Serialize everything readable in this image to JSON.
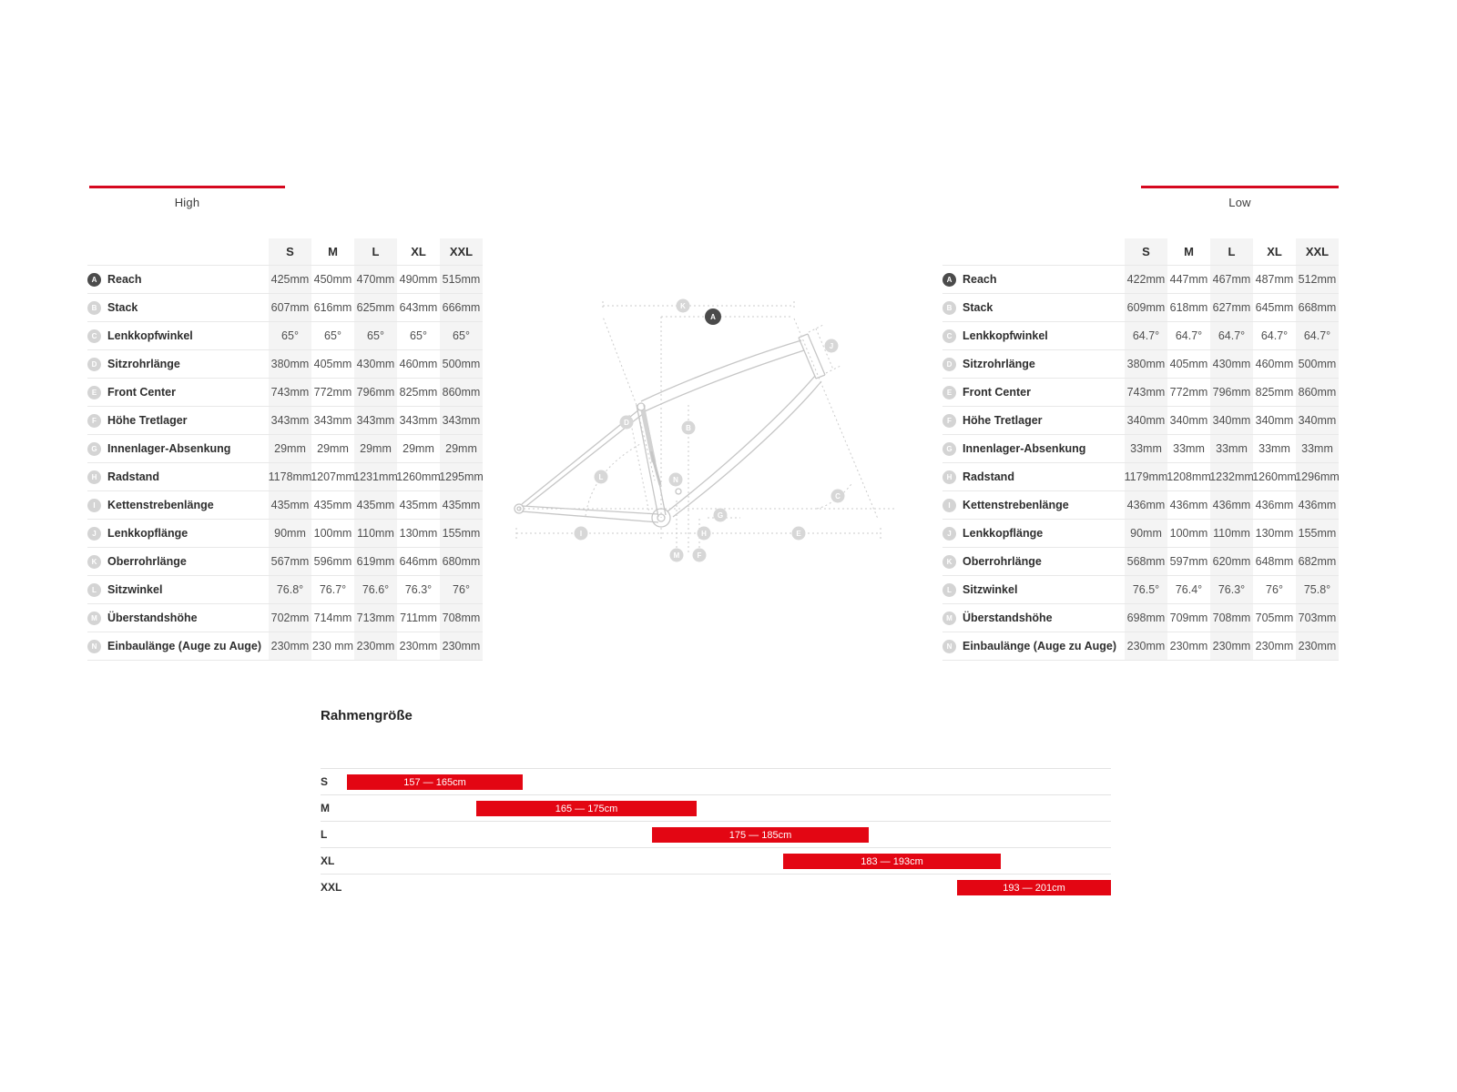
{
  "accent_color": "#e30613",
  "tabs": {
    "high_label": "High",
    "low_label": "Low"
  },
  "tables": [
    {
      "id": "high",
      "setting_label": "High",
      "columns": [
        "S",
        "M",
        "L",
        "XL",
        "XXL"
      ],
      "rows": [
        {
          "letter": "A",
          "label": "Reach",
          "highlight": true,
          "values": [
            "425mm",
            "450mm",
            "470mm",
            "490mm",
            "515mm"
          ]
        },
        {
          "letter": "B",
          "label": "Stack",
          "values": [
            "607mm",
            "616mm",
            "625mm",
            "643mm",
            "666mm"
          ]
        },
        {
          "letter": "C",
          "label": "Lenkkopfwinkel",
          "values": [
            "65°",
            "65°",
            "65°",
            "65°",
            "65°"
          ]
        },
        {
          "letter": "D",
          "label": "Sitzrohrlänge",
          "values": [
            "380mm",
            "405mm",
            "430mm",
            "460mm",
            "500mm"
          ]
        },
        {
          "letter": "E",
          "label": "Front Center",
          "values": [
            "743mm",
            "772mm",
            "796mm",
            "825mm",
            "860mm"
          ]
        },
        {
          "letter": "F",
          "label": "Höhe Tretlager",
          "values": [
            "343mm",
            "343mm",
            "343mm",
            "343mm",
            "343mm"
          ]
        },
        {
          "letter": "G",
          "label": "Innenlager-Absenkung",
          "values": [
            "29mm",
            "29mm",
            "29mm",
            "29mm",
            "29mm"
          ]
        },
        {
          "letter": "H",
          "label": "Radstand",
          "values": [
            "1178mm",
            "1207mm",
            "1231mm",
            "1260mm",
            "1295mm"
          ]
        },
        {
          "letter": "I",
          "label": "Kettenstrebenlänge",
          "values": [
            "435mm",
            "435mm",
            "435mm",
            "435mm",
            "435mm"
          ]
        },
        {
          "letter": "J",
          "label": "Lenkkopflänge",
          "values": [
            "90mm",
            "100mm",
            "110mm",
            "130mm",
            "155mm"
          ]
        },
        {
          "letter": "K",
          "label": "Oberrohrlänge",
          "values": [
            "567mm",
            "596mm",
            "619mm",
            "646mm",
            "680mm"
          ]
        },
        {
          "letter": "L",
          "label": "Sitzwinkel",
          "values": [
            "76.8°",
            "76.7°",
            "76.6°",
            "76.3°",
            "76°"
          ]
        },
        {
          "letter": "M",
          "label": "Überstandshöhe",
          "values": [
            "702mm",
            "714mm",
            "713mm",
            "711mm",
            "708mm"
          ]
        },
        {
          "letter": "N",
          "label": "Einbaulänge (Auge zu Auge)",
          "values": [
            "230mm",
            "230 mm",
            "230mm",
            "230mm",
            "230mm"
          ]
        }
      ]
    },
    {
      "id": "low",
      "setting_label": "Low",
      "columns": [
        "S",
        "M",
        "L",
        "XL",
        "XXL"
      ],
      "rows": [
        {
          "letter": "A",
          "label": "Reach",
          "highlight": true,
          "values": [
            "422mm",
            "447mm",
            "467mm",
            "487mm",
            "512mm"
          ]
        },
        {
          "letter": "B",
          "label": "Stack",
          "values": [
            "609mm",
            "618mm",
            "627mm",
            "645mm",
            "668mm"
          ]
        },
        {
          "letter": "C",
          "label": "Lenkkopfwinkel",
          "values": [
            "64.7°",
            "64.7°",
            "64.7°",
            "64.7°",
            "64.7°"
          ]
        },
        {
          "letter": "D",
          "label": "Sitzrohrlänge",
          "values": [
            "380mm",
            "405mm",
            "430mm",
            "460mm",
            "500mm"
          ]
        },
        {
          "letter": "E",
          "label": "Front Center",
          "values": [
            "743mm",
            "772mm",
            "796mm",
            "825mm",
            "860mm"
          ]
        },
        {
          "letter": "F",
          "label": "Höhe Tretlager",
          "values": [
            "340mm",
            "340mm",
            "340mm",
            "340mm",
            "340mm"
          ]
        },
        {
          "letter": "G",
          "label": "Innenlager-Absenkung",
          "values": [
            "33mm",
            "33mm",
            "33mm",
            "33mm",
            "33mm"
          ]
        },
        {
          "letter": "H",
          "label": "Radstand",
          "values": [
            "1179mm",
            "1208mm",
            "1232mm",
            "1260mm",
            "1296mm"
          ]
        },
        {
          "letter": "I",
          "label": "Kettenstrebenlänge",
          "values": [
            "436mm",
            "436mm",
            "436mm",
            "436mm",
            "436mm"
          ]
        },
        {
          "letter": "J",
          "label": "Lenkkopflänge",
          "values": [
            "90mm",
            "100mm",
            "110mm",
            "130mm",
            "155mm"
          ]
        },
        {
          "letter": "K",
          "label": "Oberrohrlänge",
          "values": [
            "568mm",
            "597mm",
            "620mm",
            "648mm",
            "682mm"
          ]
        },
        {
          "letter": "L",
          "label": "Sitzwinkel",
          "values": [
            "76.5°",
            "76.4°",
            "76.3°",
            "76°",
            "75.8°"
          ]
        },
        {
          "letter": "M",
          "label": "Überstandshöhe",
          "values": [
            "698mm",
            "709mm",
            "708mm",
            "705mm",
            "703mm"
          ]
        },
        {
          "letter": "N",
          "label": "Einbaulänge (Auge zu Auge)",
          "values": [
            "230mm",
            "230mm",
            "230mm",
            "230mm",
            "230mm"
          ]
        }
      ]
    }
  ],
  "diagram": {
    "badges": [
      {
        "letter": "A",
        "dark": true
      },
      {
        "letter": "B"
      },
      {
        "letter": "C"
      },
      {
        "letter": "D"
      },
      {
        "letter": "E"
      },
      {
        "letter": "F"
      },
      {
        "letter": "G"
      },
      {
        "letter": "H"
      },
      {
        "letter": "I"
      },
      {
        "letter": "J"
      },
      {
        "letter": "K"
      },
      {
        "letter": "L"
      },
      {
        "letter": "M"
      },
      {
        "letter": "N"
      }
    ]
  },
  "size_chart": {
    "title": "Rahmengröße",
    "rows": [
      {
        "size": "S",
        "range": "157 — 165cm",
        "min_cm": 157,
        "max_cm": 165
      },
      {
        "size": "M",
        "range": "165 — 175cm",
        "min_cm": 165,
        "max_cm": 175
      },
      {
        "size": "L",
        "range": "175 — 185cm",
        "min_cm": 175,
        "max_cm": 185
      },
      {
        "size": "XL",
        "range": "183 — 193cm",
        "min_cm": 183,
        "max_cm": 193
      },
      {
        "size": "XXL",
        "range": "193 — 201cm",
        "min_cm": 193,
        "max_cm": 201
      }
    ]
  }
}
